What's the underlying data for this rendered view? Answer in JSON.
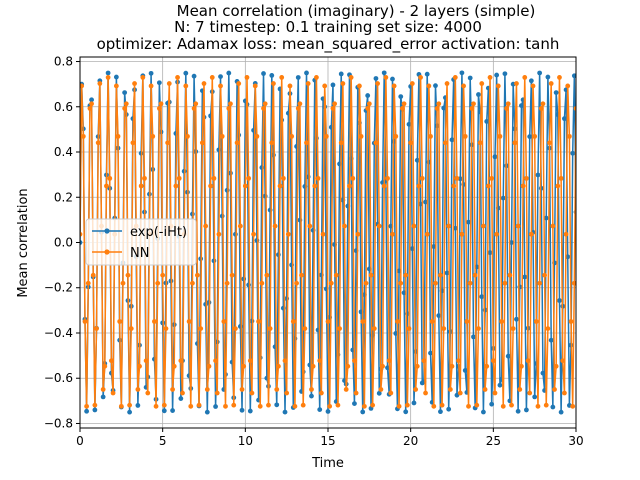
{
  "chart_data": {
    "type": "line",
    "title_lines": [
      "Mean correlation (imaginary) - 2 layers (simple)",
      "N: 7 timestep: 0.1 training set size: 4000",
      "optimizer: Adamax loss: mean_squared_error activation: tanh"
    ],
    "xlabel": "Time",
    "ylabel": "Mean correlation",
    "xlim": [
      0,
      30
    ],
    "ylim": [
      -0.82,
      0.82
    ],
    "xticks": [
      "0",
      "5",
      "10",
      "15",
      "20",
      "25",
      "30"
    ],
    "xtick_values": [
      0,
      5,
      10,
      15,
      20,
      25,
      30
    ],
    "yticks": [
      "−0.8",
      "−0.6",
      "−0.4",
      "−0.2",
      "0.0",
      "0.2",
      "0.4",
      "0.6",
      "0.8"
    ],
    "ytick_values": [
      -0.8,
      -0.6,
      -0.4,
      -0.2,
      0.0,
      0.2,
      0.4,
      0.6,
      0.8
    ],
    "grid": true,
    "legend_location": "center-left",
    "timestep": 0.1,
    "series": [
      {
        "name": "exp(-iHt)",
        "color": "#1f77b4",
        "marker": "circle",
        "amplitude": 0.75,
        "period": 0.522,
        "phase": 0.0
      },
      {
        "name": "NN",
        "color": "#ff7f0e",
        "marker": "circle",
        "amplitude": 0.73,
        "period": 0.525,
        "phase": 0.05
      }
    ]
  }
}
